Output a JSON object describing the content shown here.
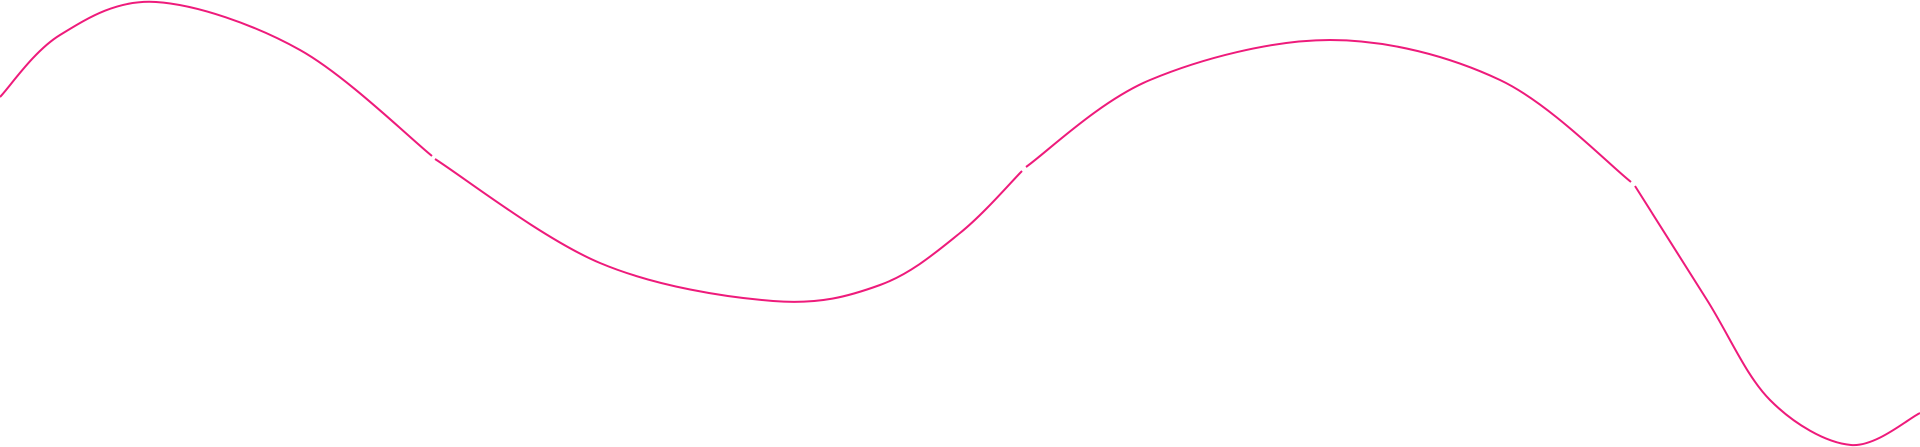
{
  "decoration": {
    "type": "wavy-line",
    "stroke_color": "#ee1b7b",
    "background_color": "#ffffff",
    "segments": 4
  }
}
